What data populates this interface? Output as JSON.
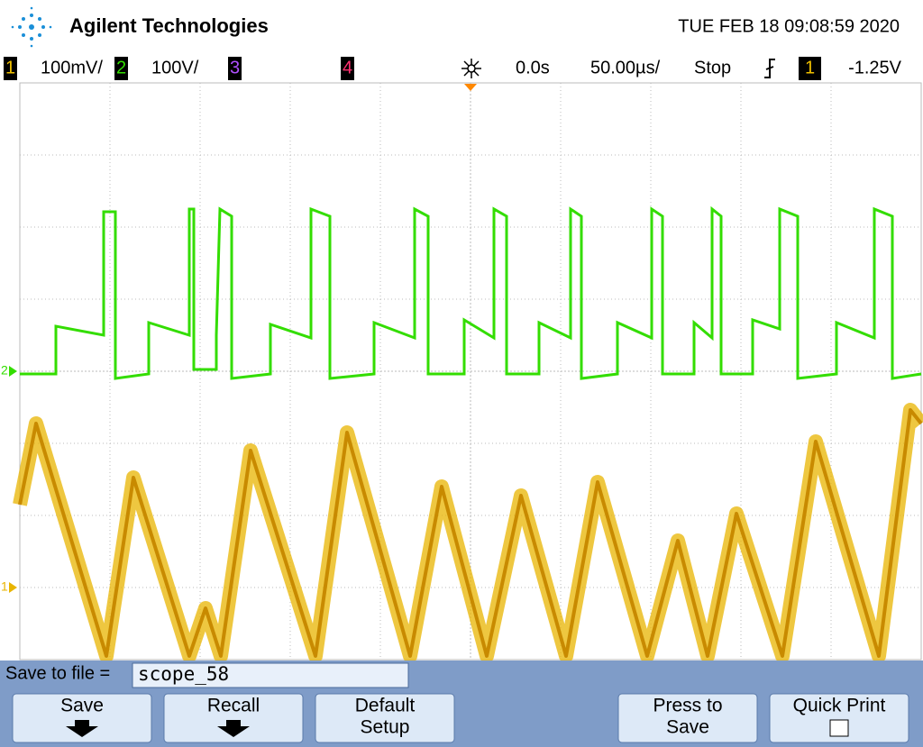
{
  "header": {
    "brand": "Agilent Technologies",
    "datetime": "TUE FEB 18 09:08:59 2020"
  },
  "status": {
    "channels": [
      {
        "number": "1",
        "scale": "100mV/"
      },
      {
        "number": "2",
        "scale": "100V/"
      },
      {
        "number": "3"
      },
      {
        "number": "4"
      }
    ],
    "delay": "0.0s",
    "timebase": "50.00µs/",
    "run_state": "Stop",
    "trigger_channel": "1",
    "trigger_level": "-1.25V"
  },
  "markers": {
    "channel_2": "2",
    "channel_1": "1"
  },
  "softkeys": {
    "save_label": "Save to file =",
    "filename": "scope_58",
    "buttons": [
      {
        "lines": [
          "Save"
        ]
      },
      {
        "lines": [
          "Recall"
        ]
      },
      {
        "lines": [
          "Default",
          "Setup"
        ]
      },
      {
        "lines": [
          "Press to",
          "Save"
        ]
      },
      {
        "lines": [
          "Quick Print"
        ]
      }
    ]
  }
}
